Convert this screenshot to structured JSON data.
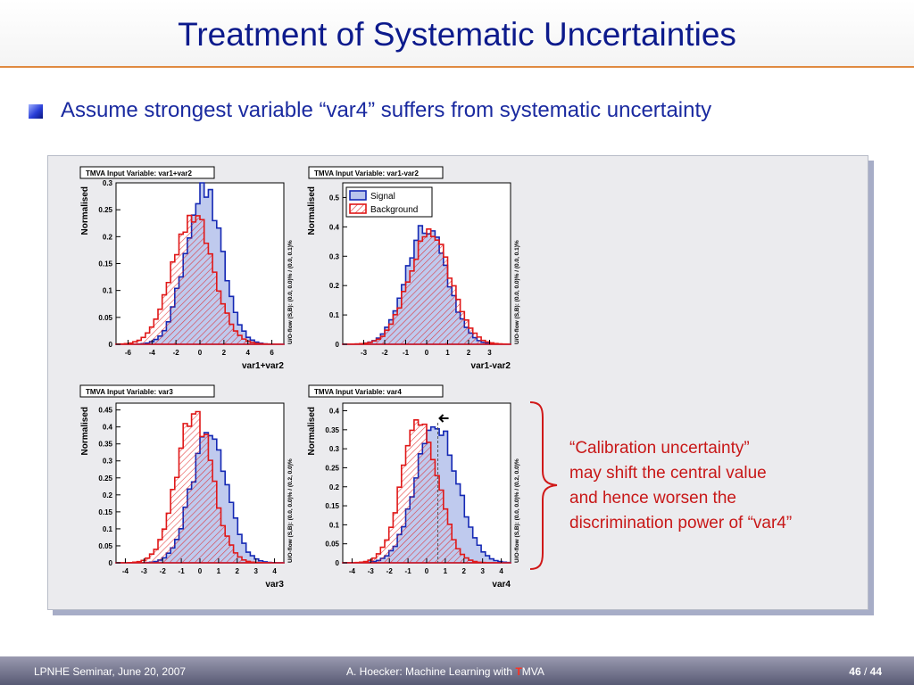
{
  "title": "Treatment of Systematic Uncertainties",
  "bullet": "Assume strongest variable “var4” suffers from systematic uncertainty",
  "annotation_lines": [
    "“Calibration uncertainty”",
    "may shift the central value",
    "and hence worsen the",
    "discrimination power of “var4”"
  ],
  "footer": {
    "left": "LPNHE Seminar, June 20, 2007",
    "center_prefix": "A. Hoecker: Machine Learning with ",
    "center_accent": "T",
    "center_suffix": "MVA",
    "page_current": "46",
    "page_sep": " / ",
    "page_total": "44"
  },
  "colors": {
    "signal": "#1428b4",
    "signal_fill": "#b8c4ec",
    "background": "#e01818",
    "annotation": "#c81818",
    "title": "#0c1a8c"
  },
  "chart_data": [
    {
      "type": "area",
      "title": "TMVA Input Variable: var1+var2",
      "xlabel": "var1+var2",
      "ylabel": "Normalised",
      "overflow_label": "U/O-flow (S,B): (0.0, 0.0)% / (0.0, 0.1)%",
      "xlim": [
        -7,
        7
      ],
      "ylim": [
        0,
        0.3
      ],
      "xticks": [
        -6,
        -4,
        -2,
        0,
        2,
        4,
        6
      ],
      "yticks": [
        0,
        0.05,
        0.1,
        0.15,
        0.2,
        0.25,
        0.3
      ],
      "series": [
        {
          "name": "Signal",
          "mean": 0.3,
          "sigma": 1.5,
          "peak": 0.29
        },
        {
          "name": "Background",
          "mean": -0.6,
          "sigma": 1.7,
          "peak": 0.24
        }
      ]
    },
    {
      "type": "area",
      "title": "TMVA Input Variable: var1-var2",
      "xlabel": "var1-var2",
      "ylabel": "Normalised",
      "overflow_label": "U/O-flow (S,B): (0.0, 0.0)% / (0.0, 0.1)%",
      "xlim": [
        -4,
        4
      ],
      "ylim": [
        0,
        0.55
      ],
      "xticks": [
        -3,
        -2,
        -1,
        0,
        1,
        2,
        3
      ],
      "yticks": [
        0,
        0.1,
        0.2,
        0.3,
        0.4,
        0.5
      ],
      "legend": [
        "Signal",
        "Background"
      ],
      "series": [
        {
          "name": "Signal",
          "mean": 0.0,
          "sigma": 0.95,
          "peak": 0.41
        },
        {
          "name": "Background",
          "mean": 0.15,
          "sigma": 1.0,
          "peak": 0.37
        }
      ]
    },
    {
      "type": "area",
      "title": "TMVA Input Variable: var3",
      "xlabel": "var3",
      "ylabel": "Normalised",
      "overflow_label": "U/O-flow (S,B): (0.0, 0.0)% / (0.2, 0.0)%",
      "xlim": [
        -4.5,
        4.5
      ],
      "ylim": [
        0,
        0.47
      ],
      "xticks": [
        -4,
        -3,
        -2,
        -1,
        0,
        1,
        2,
        3,
        4
      ],
      "yticks": [
        0,
        0.05,
        0.1,
        0.15,
        0.2,
        0.25,
        0.3,
        0.35,
        0.4,
        0.45
      ],
      "series": [
        {
          "name": "Signal",
          "mean": 0.5,
          "sigma": 0.95,
          "peak": 0.38
        },
        {
          "name": "Background",
          "mean": -0.3,
          "sigma": 0.95,
          "peak": 0.44
        }
      ]
    },
    {
      "type": "area",
      "title": "TMVA Input Variable: var4",
      "xlabel": "var4",
      "ylabel": "Normalised",
      "overflow_label": "U/O-flow (S,B): (0.0, 0.0)% / (0.2, 0.0)%",
      "xlim": [
        -4.5,
        4.5
      ],
      "ylim": [
        0,
        0.42
      ],
      "xticks": [
        -4,
        -3,
        -2,
        -1,
        0,
        1,
        2,
        3,
        4
      ],
      "yticks": [
        0,
        0.05,
        0.1,
        0.15,
        0.2,
        0.25,
        0.3,
        0.35,
        0.4
      ],
      "marker_x": 0.6,
      "series": [
        {
          "name": "Signal",
          "mean": 0.55,
          "sigma": 1.1,
          "peak": 0.37
        },
        {
          "name": "Background",
          "mean": -0.35,
          "sigma": 0.95,
          "peak": 0.38
        }
      ]
    }
  ]
}
